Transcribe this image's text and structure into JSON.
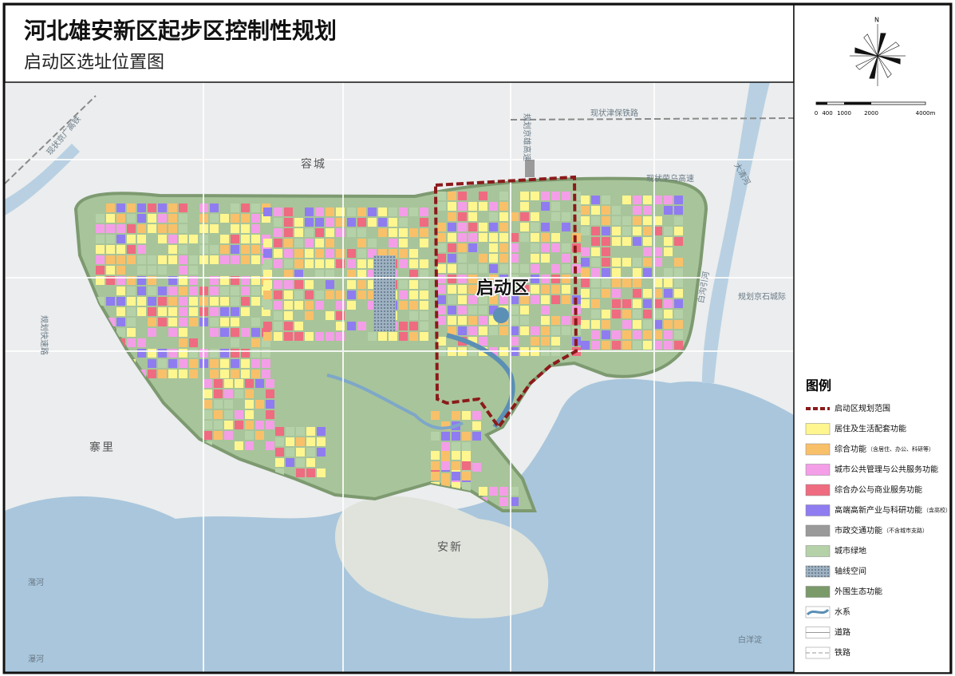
{
  "header": {
    "title": "河北雄安新区起步区控制性规划",
    "subtitle": "启动区选址位置图"
  },
  "north": "N",
  "scale": [
    "0",
    "400",
    "1000",
    "2000",
    "4000m"
  ],
  "map_labels": {
    "launch_zone": "启动区",
    "rongcheng": "容城",
    "zhaili": "寨里",
    "anxin": "安新",
    "jingxiong": "规划京雄高速",
    "jinbao": "现状津保铁路",
    "rongwu": "现状荣乌高速",
    "daqing": "大清河",
    "baigou": "白沟引河",
    "jingshi": "规划京石城际",
    "kuaisu": "规划快速路",
    "baiyangdian": "白洋淀",
    "puhe": "瀑河",
    "laohe": "潴河",
    "jinggang": "现状京广高铁"
  },
  "legend": {
    "title": "图例",
    "items": [
      {
        "label": "启动区规划范围"
      },
      {
        "label": "居住及生活配套功能"
      },
      {
        "label": "综合功能",
        "note": "（含居住、办公、科研等）"
      },
      {
        "label": "城市公共管理与公共服务功能"
      },
      {
        "label": "综合办公与商业服务功能"
      },
      {
        "label": "高端高新产业与科研功能",
        "note": "（含高校）"
      },
      {
        "label": "市政交通功能",
        "note": "（不含城市支路）"
      },
      {
        "label": "城市绿地"
      },
      {
        "label": "轴线空间"
      },
      {
        "label": "外围生态功能"
      },
      {
        "label": "水系"
      },
      {
        "label": "道路"
      },
      {
        "label": "铁路"
      }
    ]
  }
}
